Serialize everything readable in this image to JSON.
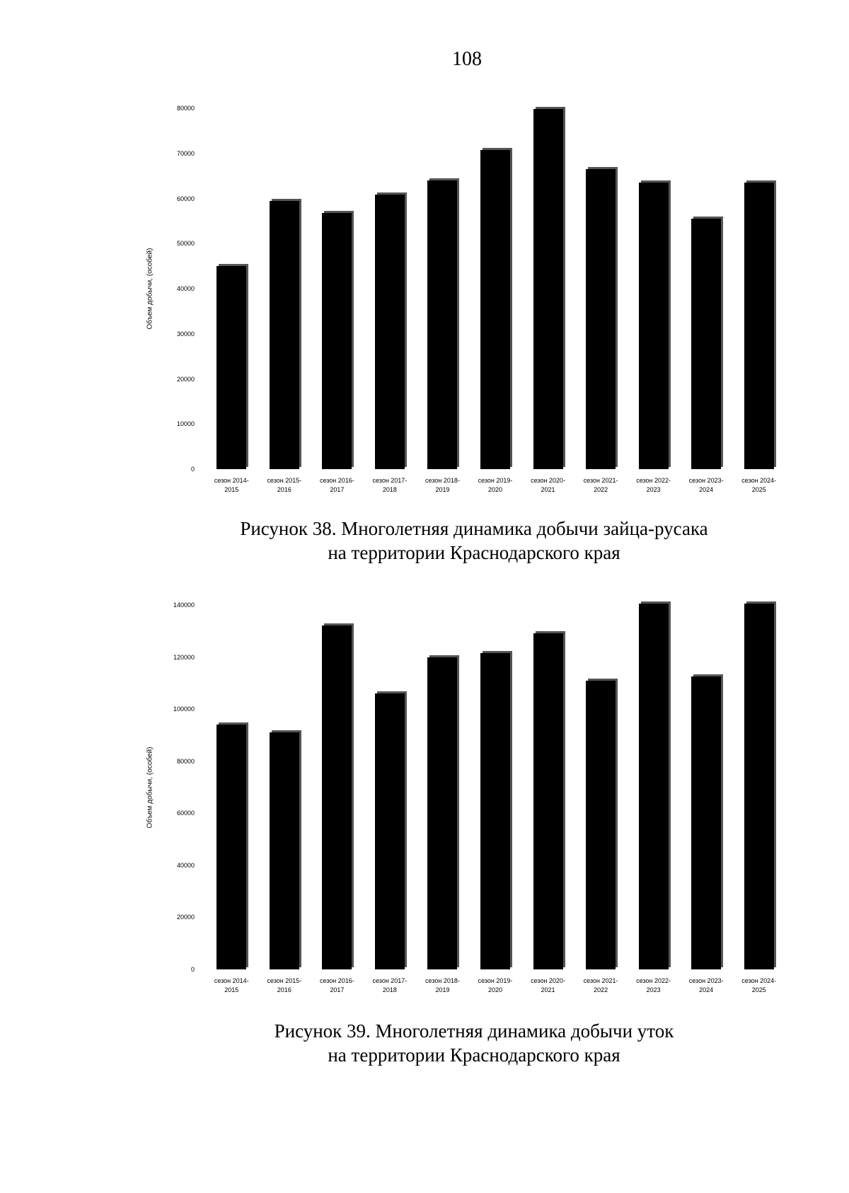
{
  "page_number": "108",
  "chart_data": [
    {
      "type": "bar",
      "y_label": "Объем добычи, (особей)",
      "categories": [
        "сезон 2014- 2015",
        "сезон 2015- 2016",
        "сезон 2016- 2017",
        "сезон 2017- 2018",
        "сезон 2018- 2019",
        "сезон 2019- 2020",
        "сезон 2020- 2021",
        "сезон 2021- 2022",
        "сезон 2022- 2023",
        "сезон 2023- 2024",
        "сезон 2024- 2025"
      ],
      "values": [
        45000,
        59500,
        56800,
        60800,
        64000,
        70800,
        79800,
        66500,
        63500,
        55500,
        63500
      ],
      "color": "#000000",
      "ylim": [
        0,
        80000
      ],
      "yticks": [
        0,
        10000,
        20000,
        30000,
        40000,
        50000,
        60000,
        70000,
        80000
      ],
      "caption": [
        "Рисунок 38. Многолетняя динамика добычи зайца-русака",
        "на территории Краснодарского края"
      ]
    },
    {
      "type": "bar",
      "y_label": "Объем добычи, (особей)",
      "categories": [
        "сезон 2014- 2015",
        "сезон 2015- 2016",
        "сезон 2016- 2017",
        "сезон 2017- 2018",
        "сезон 2018- 2019",
        "сезон 2019- 2020",
        "сезон 2020- 2021",
        "сезон 2021- 2022",
        "сезон 2022- 2023",
        "сезон 2023- 2024",
        "сезон 2024- 2025"
      ],
      "values": [
        94000,
        91000,
        132000,
        106000,
        120000,
        121500,
        129000,
        111000,
        140500,
        112500,
        140500
      ],
      "color": "#000000",
      "ylim": [
        0,
        140000
      ],
      "yticks": [
        0,
        20000,
        40000,
        60000,
        80000,
        100000,
        120000,
        140000
      ],
      "caption": [
        "Рисунок 39. Многолетняя динамика добычи уток",
        "на территории Краснодарского края"
      ]
    }
  ]
}
